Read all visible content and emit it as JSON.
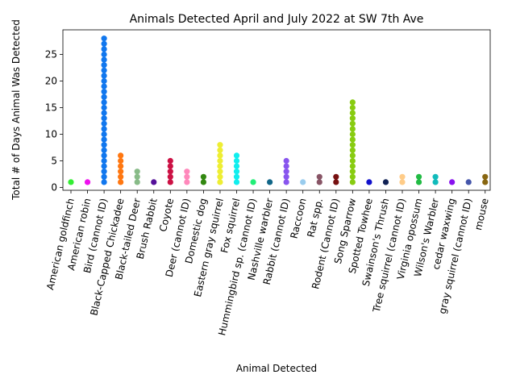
{
  "chart_data": {
    "type": "scatter",
    "title": "Animals Detected April and July 2022 at SW 7th Ave",
    "xlabel": "Animal Detected",
    "ylabel": "Total # of Days Animal Was Detected",
    "ylim": [
      0,
      29
    ],
    "yticks": [
      0,
      5,
      10,
      15,
      20,
      25
    ],
    "grid": false,
    "legend": "none",
    "categories": [
      "American goldfinch",
      "American robin",
      "Bird (cannot ID)",
      "Black-Capped Chickadee",
      "Black-tailed Deer",
      "Brush Rabbit",
      "Coyote",
      "Deer (cannot ID)",
      "Domestic dog",
      "Eastern gray squirrel",
      "Fox squirrel",
      "Hummingbird sp. (cannot ID)",
      "Nashville warbler",
      "Rabbit (cannot ID)",
      "Raccoon",
      "Rat spp.",
      "Rodent (Cannot ID)",
      "Song Sparrow",
      "Spotted Towhee",
      "Swainson's Thrush",
      "Tree squirrel (cannot ID)",
      "Virginia opossum",
      "Wilson's Warbler",
      "cedar waxwing",
      "gray squirrel (cannot ID)",
      "mouse"
    ],
    "values": [
      1,
      1,
      28,
      6,
      3,
      1,
      5,
      3,
      2,
      8,
      6,
      1,
      1,
      5,
      1,
      2,
      2,
      16,
      1,
      1,
      2,
      2,
      2,
      1,
      1,
      2
    ],
    "colors": [
      "#33ee33",
      "#ee11ee",
      "#1177ee",
      "#ff7711",
      "#88bb88",
      "#551199",
      "#cc1144",
      "#ff88bb",
      "#338811",
      "#eeee33",
      "#11eeee",
      "#22ee77",
      "#116688",
      "#8855ee",
      "#99ccee",
      "#885566",
      "#771111",
      "#88cc11",
      "#1111cc",
      "#112255",
      "#ffcc88",
      "#22bb44",
      "#11bbbb",
      "#8811ee",
      "#4455aa",
      "#886611"
    ]
  }
}
